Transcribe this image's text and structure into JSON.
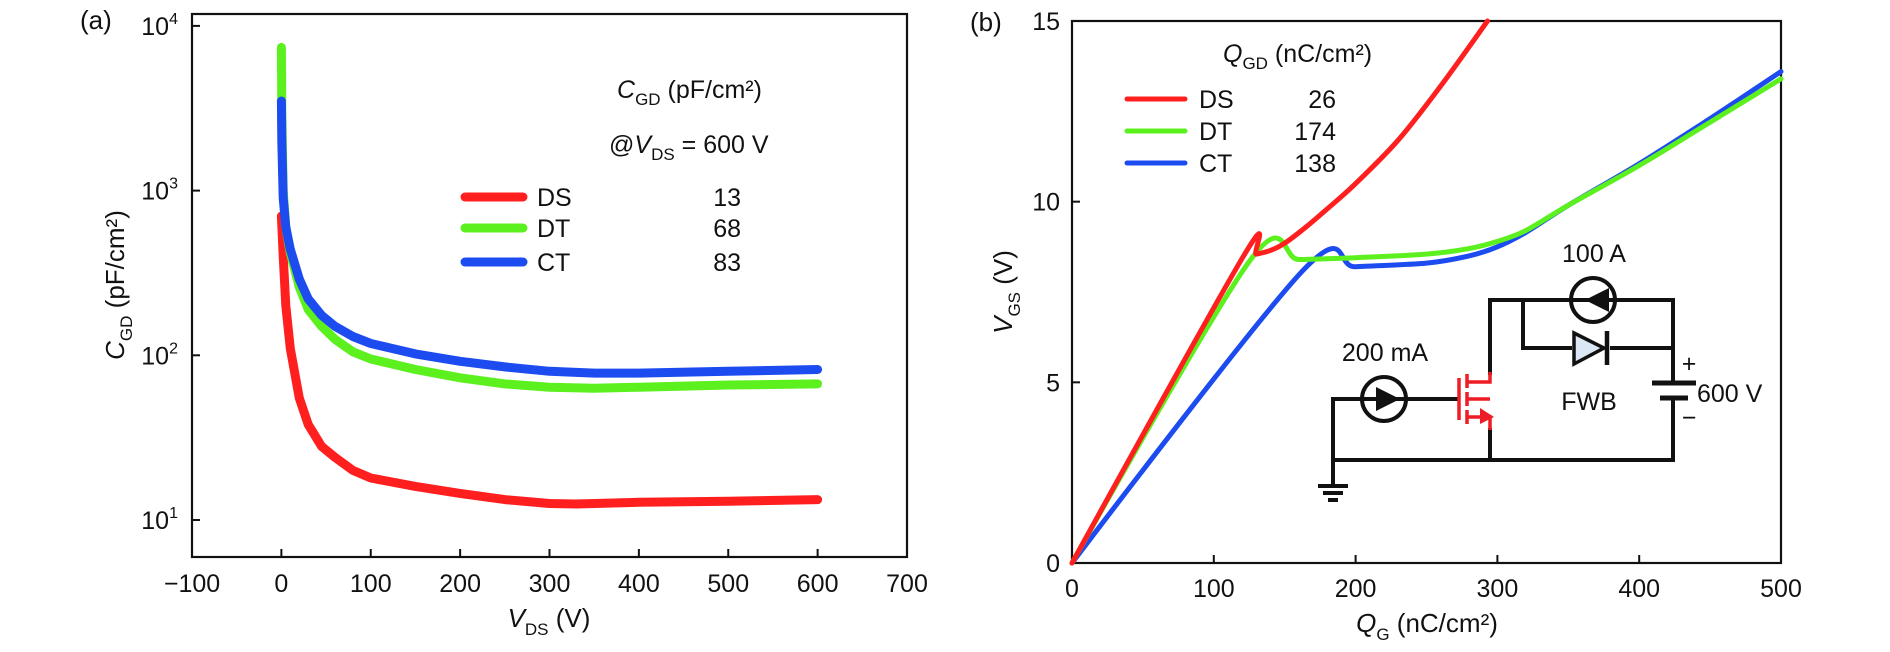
{
  "chart_data": [
    {
      "panel_label": "(a)",
      "type": "line",
      "title": "",
      "xlabel": "V_DS (V)",
      "xlabel_main": "V",
      "xlabel_sub": "DS",
      "xlabel_unit": " (V)",
      "ylabel": "C_GD (pF/cm²)",
      "ylabel_main": "C",
      "ylabel_sub": "GD",
      "ylabel_unit": " (pF/cm²)",
      "xlim": [
        -100,
        700
      ],
      "ylim": [
        10,
        10000
      ],
      "yscale": "log",
      "xticks": [
        -100,
        0,
        100,
        200,
        300,
        400,
        500,
        600,
        700
      ],
      "xtick_labels": [
        "−100",
        "0",
        "100",
        "200",
        "300",
        "400",
        "500",
        "600",
        "700"
      ],
      "yticks": [
        10,
        100,
        1000,
        10000
      ],
      "ytick_labels": [
        {
          "base": "10",
          "exp": "1"
        },
        {
          "base": "10",
          "exp": "2"
        },
        {
          "base": "10",
          "exp": "3"
        },
        {
          "base": "10",
          "exp": "4"
        }
      ],
      "grid": false,
      "legend_title_main": "C",
      "legend_title_sub": "GD",
      "legend_title_unit": " (pF/cm²)",
      "legend_condition_prefix": "@",
      "legend_condition_var": "V",
      "legend_condition_sub": "DS",
      "legend_condition_rest": " = 600 V",
      "legend_placement": "top-right",
      "series": [
        {
          "name": "DS",
          "value_label": "13",
          "color": "#ff1f1f",
          "x": [
            0,
            2,
            5,
            10,
            20,
            30,
            45,
            60,
            80,
            100,
            150,
            200,
            250,
            300,
            330,
            400,
            500,
            600
          ],
          "y": [
            700,
            400,
            200,
            110,
            55,
            38,
            28,
            24,
            20,
            18,
            16,
            14.5,
            13.3,
            12.6,
            12.5,
            12.8,
            13.0,
            13.3
          ]
        },
        {
          "name": "DT",
          "value_label": "68",
          "color": "#5cf01e",
          "x": [
            0,
            0.5,
            2,
            5,
            10,
            20,
            30,
            45,
            60,
            80,
            100,
            150,
            200,
            250,
            300,
            350,
            400,
            500,
            600
          ],
          "y": [
            7400,
            3000,
            1000,
            600,
            420,
            260,
            190,
            150,
            125,
            105,
            95,
            82,
            73,
            67,
            64,
            63,
            64,
            66,
            67
          ]
        },
        {
          "name": "CT",
          "value_label": "83",
          "color": "#1c4cf0",
          "x": [
            0,
            0.5,
            2,
            5,
            10,
            20,
            30,
            45,
            60,
            80,
            100,
            150,
            200,
            250,
            300,
            350,
            400,
            500,
            600
          ],
          "y": [
            3500,
            2000,
            900,
            600,
            440,
            290,
            220,
            175,
            150,
            130,
            118,
            102,
            92,
            85,
            80,
            78,
            78,
            80,
            82
          ]
        }
      ]
    },
    {
      "panel_label": "(b)",
      "type": "line",
      "title": "",
      "xlabel": "Q_G (nC/cm²)",
      "xlabel_main": "Q",
      "xlabel_sub": "G",
      "xlabel_unit": " (nC/cm²)",
      "ylabel": "V_GS (V)",
      "ylabel_main": "V",
      "ylabel_sub": "GS",
      "ylabel_unit": " (V)",
      "xlim": [
        0,
        500
      ],
      "ylim": [
        0,
        15
      ],
      "xticks": [
        0,
        100,
        200,
        300,
        400,
        500
      ],
      "xtick_labels": [
        "0",
        "100",
        "200",
        "300",
        "400",
        "500"
      ],
      "yticks": [
        0,
        5,
        10,
        15
      ],
      "ytick_labels": [
        "0",
        "5",
        "10",
        "15"
      ],
      "grid": false,
      "legend_title_main": "Q",
      "legend_title_sub": "GD",
      "legend_title_unit": " (nC/cm²)",
      "legend_placement": "top-left",
      "series": [
        {
          "name": "DS",
          "value_label": "26",
          "color": "#ff1f1f",
          "x": [
            0,
            121,
            130,
            140,
            150,
            165,
            180,
            200,
            230,
            260,
            293
          ],
          "y": [
            0,
            8.5,
            8.55,
            8.65,
            8.85,
            9.3,
            9.8,
            10.5,
            11.7,
            13.2,
            15
          ]
        },
        {
          "name": "DT",
          "value_label": "174",
          "color": "#5cf01e",
          "x": [
            0,
            126,
            160,
            200,
            250,
            280,
            300,
            320,
            350,
            400,
            450,
            500
          ],
          "y": [
            0,
            8.4,
            8.4,
            8.45,
            8.55,
            8.7,
            8.9,
            9.2,
            9.9,
            11.0,
            12.2,
            13.4
          ]
        },
        {
          "name": "CT",
          "value_label": "138",
          "color": "#1c4cf0",
          "x": [
            0,
            163,
            200,
            250,
            280,
            300,
            320,
            350,
            400,
            450,
            500
          ],
          "y": [
            0,
            8.1,
            8.2,
            8.3,
            8.5,
            8.75,
            9.15,
            9.9,
            11.05,
            12.3,
            13.6
          ]
        }
      ],
      "inset_circuit": {
        "gate_source_label": "200 mA",
        "load_source_label": "100 A",
        "diode_label": "FWB",
        "supply_label": "600 V",
        "supply_plus": "+",
        "supply_minus": "−"
      }
    }
  ]
}
